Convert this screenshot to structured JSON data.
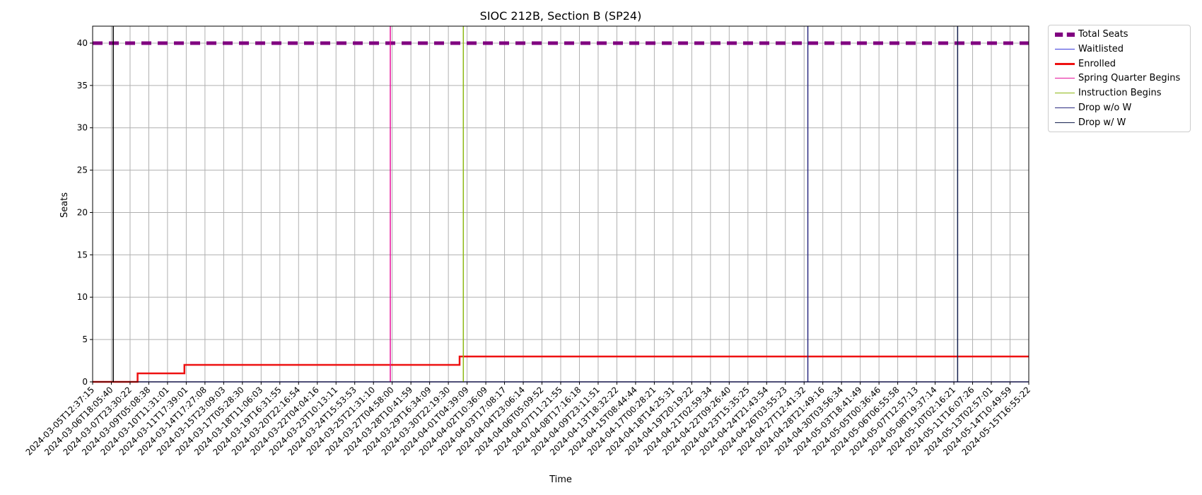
{
  "chart_data": {
    "type": "line",
    "title": "SIOC 212B, Section B (SP24)",
    "xlabel": "Time",
    "ylabel": "Seats",
    "ylim": [
      0,
      42
    ],
    "y_ticks": [
      0,
      5,
      10,
      15,
      20,
      25,
      30,
      35,
      40
    ],
    "grid": true,
    "legend_position": "outside-top-right",
    "x_tick_labels": [
      "2024-03-05T12:37:15",
      "2024-03-06T18:05:40",
      "2024-03-07T23:30:22",
      "2024-03-09T05:08:38",
      "2024-03-10T11:31:01",
      "2024-03-11T17:39:01",
      "2024-03-14T17:27:08",
      "2024-03-15T23:09:03",
      "2024-03-17T05:28:30",
      "2024-03-18T11:06:03",
      "2024-03-19T16:31:55",
      "2024-03-20T22:16:54",
      "2024-03-22T04:04:16",
      "2024-03-23T10:13:11",
      "2024-03-24T15:53:53",
      "2024-03-25T21:31:10",
      "2024-03-27T04:58:00",
      "2024-03-28T10:41:59",
      "2024-03-29T16:34:09",
      "2024-03-30T22:19:30",
      "2024-04-01T04:39:09",
      "2024-04-02T10:36:09",
      "2024-04-03T17:08:17",
      "2024-04-04T23:06:14",
      "2024-04-06T05:09:52",
      "2024-04-07T11:21:55",
      "2024-04-08T17:16:18",
      "2024-04-09T23:11:51",
      "2024-04-13T18:32:22",
      "2024-04-15T08:44:44",
      "2024-04-17T00:28:21",
      "2024-04-18T14:25:31",
      "2024-04-19T20:19:22",
      "2024-04-21T02:59:34",
      "2024-04-22T09:26:40",
      "2024-04-23T15:35:25",
      "2024-04-24T21:43:54",
      "2024-04-26T03:55:23",
      "2024-04-27T12:41:32",
      "2024-04-28T21:49:16",
      "2024-04-30T03:56:34",
      "2024-05-03T18:41:49",
      "2024-05-05T00:36:46",
      "2024-05-06T06:55:58",
      "2024-05-07T12:57:13",
      "2024-05-08T19:37:14",
      "2024-05-10T02:16:21",
      "2024-05-11T16:07:26",
      "2024-05-13T02:57:01",
      "2024-05-14T10:49:59",
      "2024-05-15T16:55:22"
    ],
    "series": [
      {
        "name": "Total Seats",
        "color": "#800080",
        "style": "dashed",
        "x_index": [
          0,
          50
        ],
        "values": [
          40,
          40
        ]
      },
      {
        "name": "Waitlisted",
        "color": "#3b3bdb",
        "style": "solid",
        "x_index": [
          0,
          50
        ],
        "values": [
          0,
          0
        ]
      },
      {
        "name": "Enrolled",
        "color": "#ee1111",
        "style": "step",
        "x_index": [
          0,
          2.4,
          2.4,
          4.9,
          4.9,
          19.6,
          19.6,
          50
        ],
        "values": [
          0,
          0,
          1,
          1,
          2,
          2,
          3,
          3
        ]
      }
    ],
    "vlines": [
      {
        "name": "",
        "color": "#000000",
        "x_index": 1.1
      },
      {
        "name": "Spring Quarter Begins",
        "color": "#e6109b",
        "x_index": 15.9
      },
      {
        "name": "Instruction Begins",
        "color": "#8db814",
        "x_index": 19.8
      },
      {
        "name": "Drop w/o W",
        "color": "#2a2a80",
        "x_index": 38.2
      },
      {
        "name": "Drop w/ W",
        "color": "#15214f",
        "x_index": 46.2
      }
    ],
    "legend": [
      {
        "label": "Total Seats",
        "color": "#800080",
        "kind": "thick-dashed"
      },
      {
        "label": "Waitlisted",
        "color": "#3b3bdb",
        "kind": "line"
      },
      {
        "label": "Enrolled",
        "color": "#ee1111",
        "kind": "thick-line"
      },
      {
        "label": "Spring Quarter Begins",
        "color": "#e6109b",
        "kind": "line"
      },
      {
        "label": "Instruction Begins",
        "color": "#8db814",
        "kind": "line"
      },
      {
        "label": "Drop w/o W",
        "color": "#2a2a80",
        "kind": "line"
      },
      {
        "label": "Drop w/ W",
        "color": "#15214f",
        "kind": "line"
      }
    ]
  }
}
